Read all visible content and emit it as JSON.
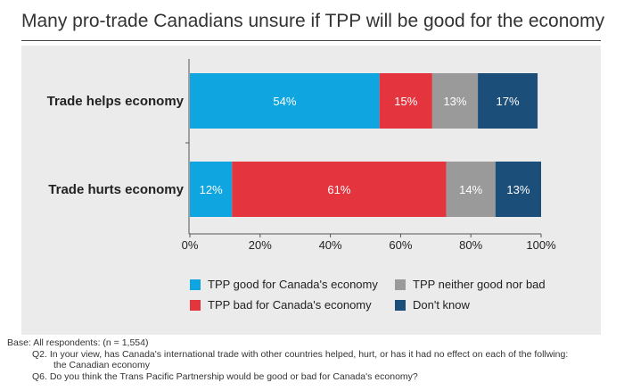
{
  "title": "Many pro-trade Canadians unsure if TPP will be good for the economy",
  "chart_data": {
    "type": "bar",
    "orientation": "horizontal",
    "stacked": true,
    "categories": [
      "Trade helps economy",
      "Trade hurts economy"
    ],
    "series": [
      {
        "name": "TPP good for Canada's economy",
        "color": "#0ea5e0",
        "values": [
          54,
          12
        ]
      },
      {
        "name": "TPP bad for Canada's economy",
        "color": "#e4343d",
        "values": [
          15,
          61
        ]
      },
      {
        "name": "TPP neither good nor bad",
        "color": "#9a9a9a",
        "values": [
          13,
          14
        ]
      },
      {
        "name": "Don't know",
        "color": "#1b4f7a",
        "values": [
          17,
          13
        ]
      }
    ],
    "value_labels": [
      [
        "54%",
        "15%",
        "13%",
        "17%"
      ],
      [
        "12%",
        "61%",
        "14%",
        "13%"
      ]
    ],
    "xlim": [
      0,
      100
    ],
    "xticks": [
      "0%",
      "20%",
      "40%",
      "60%",
      "80%",
      "100%"
    ],
    "grid": false,
    "legend_position": "bottom"
  },
  "footnotes": {
    "base": "Base: All respondents: (n = 1,554)",
    "q2_line1": "Q2. In your view, has Canada's international trade with other countries helped, hurt, or has it had no effect on each of the follwing:",
    "q2_line2": "the Canadian economy",
    "q6": "Q6. Do you think the Trans Pacific Partnership would be good or bad for Canada's economy?"
  }
}
